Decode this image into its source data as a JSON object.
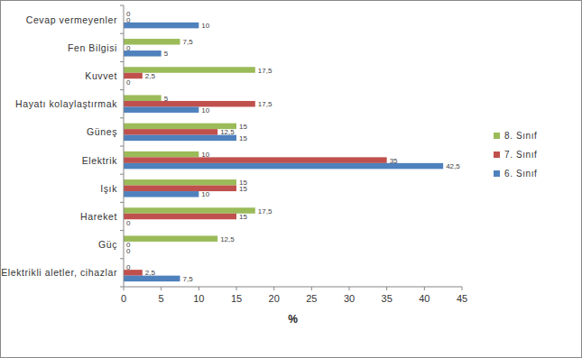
{
  "chart_data": {
    "type": "bar",
    "orientation": "horizontal",
    "data_labels": true,
    "grid": false,
    "legend": "right",
    "xlabel": "%",
    "categories": [
      "Cevap vermeyenler",
      "Fen Bilgisi",
      "Kuvvet",
      "Hayatı kolaylaştırmak",
      "Güneş",
      "Elektrik",
      "Işık",
      "Hareket",
      "Güç",
      "Elektrikli aletler, cihazlar"
    ],
    "series": [
      {
        "name": "8. Sınıf",
        "color": "#9bbb59",
        "values": [
          0,
          7.5,
          17.5,
          5,
          15,
          10,
          15,
          17.5,
          12.5,
          0
        ],
        "value_labels": [
          "0",
          "7,5",
          "17,5",
          "5",
          "15",
          "10",
          "15",
          "17,5",
          "12,5",
          "0"
        ]
      },
      {
        "name": "7. Sınıf",
        "color": "#c0504d",
        "values": [
          0,
          0,
          2.5,
          17.5,
          12.5,
          35,
          15,
          15,
          0,
          2.5
        ],
        "value_labels": [
          "0",
          "0",
          "2,5",
          "17,5",
          "12,5",
          "35",
          "15",
          "15",
          "0",
          "2,5"
        ]
      },
      {
        "name": "6. Sınıf",
        "color": "#4f81bd",
        "values": [
          10,
          5,
          0,
          10,
          15,
          42.5,
          10,
          0,
          0,
          7.5
        ],
        "value_labels": [
          "10",
          "5",
          "0",
          "10",
          "15",
          "42,5",
          "10",
          "0",
          "0",
          "7,5"
        ]
      }
    ],
    "xlim": [
      0,
      45
    ],
    "xticks": [
      0,
      5,
      10,
      15,
      20,
      25,
      30,
      35,
      40,
      45
    ]
  }
}
